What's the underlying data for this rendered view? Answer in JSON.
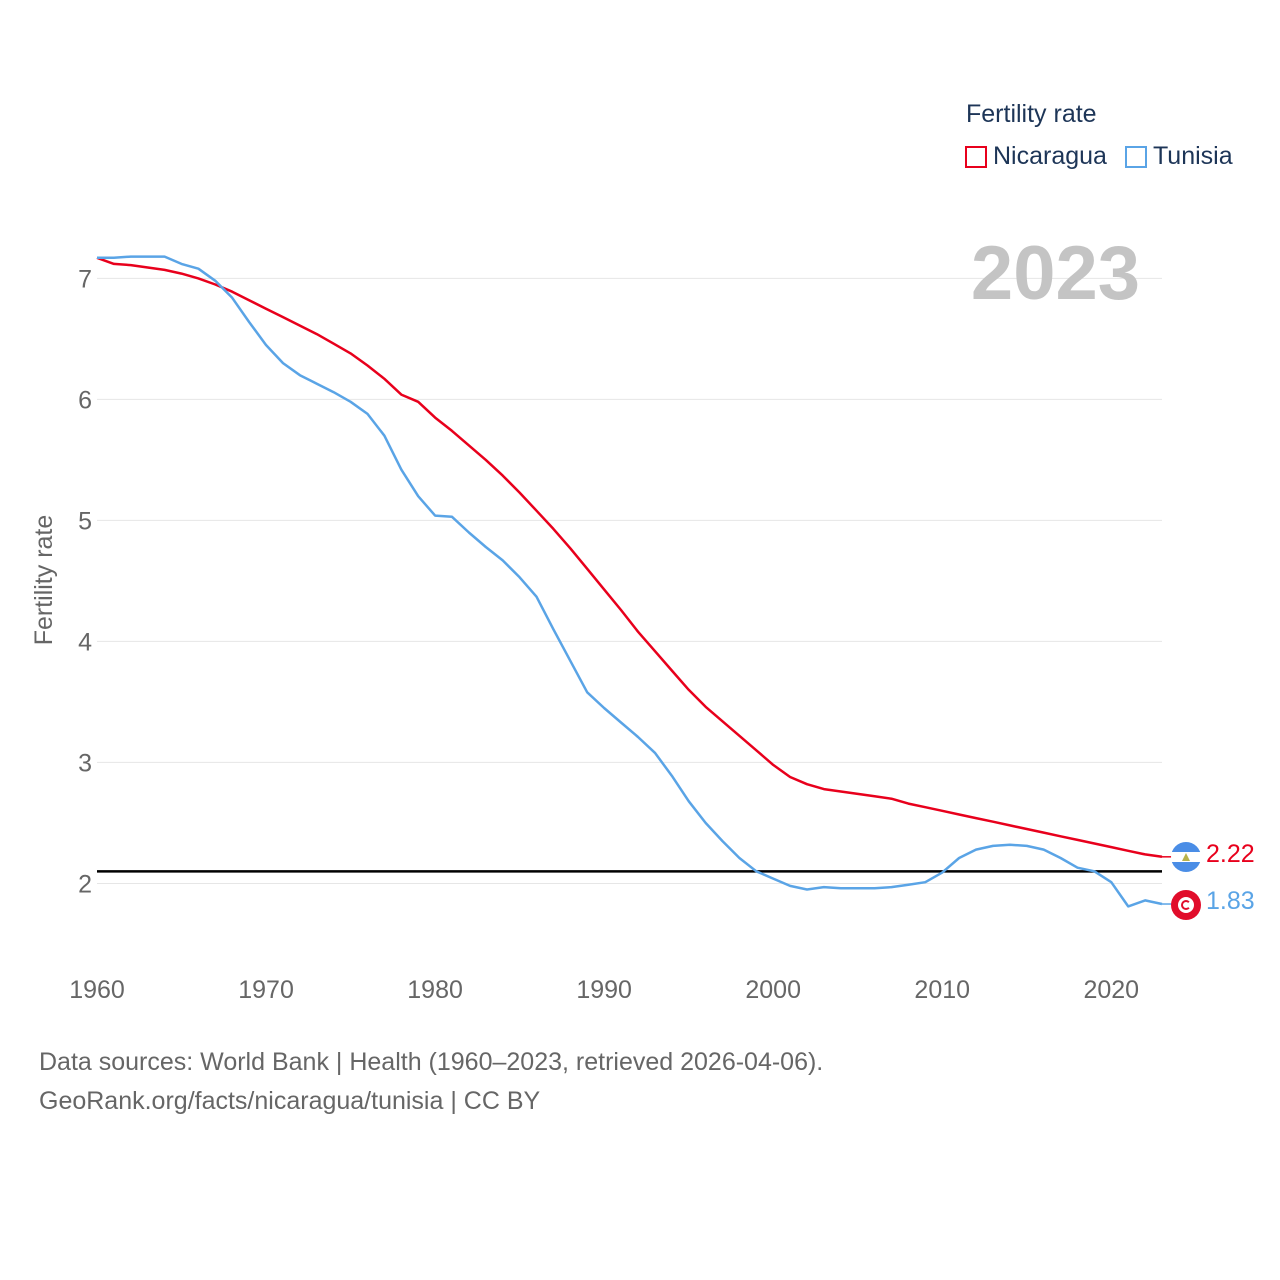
{
  "chart_data": {
    "type": "line",
    "title": "",
    "xlabel": "",
    "ylabel": "Fertility rate",
    "xlim": [
      1960,
      2023
    ],
    "ylim": [
      1.45,
      7.4
    ],
    "x_ticks": [
      1960,
      1970,
      1980,
      1990,
      2000,
      2010,
      2020
    ],
    "y_ticks": [
      2,
      3,
      4,
      5,
      6,
      7
    ],
    "grid": true,
    "reference_line": 2.1,
    "current_year": "2023",
    "legend": {
      "title": "Fertility rate",
      "position": "top-right"
    },
    "x": [
      1960,
      1961,
      1962,
      1963,
      1964,
      1965,
      1966,
      1967,
      1968,
      1969,
      1970,
      1971,
      1972,
      1973,
      1974,
      1975,
      1976,
      1977,
      1978,
      1979,
      1980,
      1981,
      1982,
      1983,
      1984,
      1985,
      1986,
      1987,
      1988,
      1989,
      1990,
      1991,
      1992,
      1993,
      1994,
      1995,
      1996,
      1997,
      1998,
      1999,
      2000,
      2001,
      2002,
      2003,
      2004,
      2005,
      2006,
      2007,
      2008,
      2009,
      2010,
      2011,
      2012,
      2013,
      2014,
      2015,
      2016,
      2017,
      2018,
      2019,
      2020,
      2021,
      2022,
      2023
    ],
    "series": [
      {
        "name": "Nicaragua",
        "color": "#e8001c",
        "end_label": "2.22",
        "values": [
          7.17,
          7.12,
          7.11,
          7.09,
          7.07,
          7.04,
          7.0,
          6.95,
          6.89,
          6.82,
          6.75,
          6.68,
          6.61,
          6.54,
          6.46,
          6.38,
          6.28,
          6.17,
          6.04,
          5.98,
          5.85,
          5.74,
          5.62,
          5.5,
          5.37,
          5.23,
          5.08,
          4.93,
          4.77,
          4.6,
          4.43,
          4.26,
          4.08,
          3.92,
          3.76,
          3.6,
          3.46,
          3.34,
          3.22,
          3.1,
          2.98,
          2.88,
          2.82,
          2.78,
          2.76,
          2.74,
          2.72,
          2.7,
          2.66,
          2.63,
          2.6,
          2.57,
          2.54,
          2.51,
          2.48,
          2.45,
          2.42,
          2.39,
          2.36,
          2.33,
          2.3,
          2.27,
          2.24,
          2.22
        ]
      },
      {
        "name": "Tunisia",
        "color": "#5aa4e6",
        "end_label": "1.83",
        "values": [
          7.17,
          7.17,
          7.18,
          7.18,
          7.18,
          7.12,
          7.08,
          6.98,
          6.84,
          6.64,
          6.45,
          6.3,
          6.2,
          6.13,
          6.06,
          5.98,
          5.88,
          5.7,
          5.42,
          5.2,
          5.04,
          5.03,
          4.9,
          4.78,
          4.67,
          4.53,
          4.37,
          4.1,
          3.84,
          3.58,
          3.45,
          3.33,
          3.21,
          3.08,
          2.89,
          2.68,
          2.5,
          2.35,
          2.21,
          2.1,
          2.04,
          1.98,
          1.95,
          1.97,
          1.96,
          1.96,
          1.96,
          1.97,
          1.99,
          2.01,
          2.09,
          2.21,
          2.28,
          2.31,
          2.32,
          2.31,
          2.28,
          2.21,
          2.13,
          2.1,
          2.01,
          1.81,
          1.86,
          1.83
        ]
      }
    ]
  },
  "footer": {
    "line1": "Data sources: World Bank | Health (1960–2023, retrieved 2026-04-06).",
    "line2": "GeoRank.org/facts/nicaragua/tunisia | CC BY"
  },
  "flags": {
    "nicaragua": "nicaragua-flag",
    "tunisia": "tunisia-flag"
  }
}
